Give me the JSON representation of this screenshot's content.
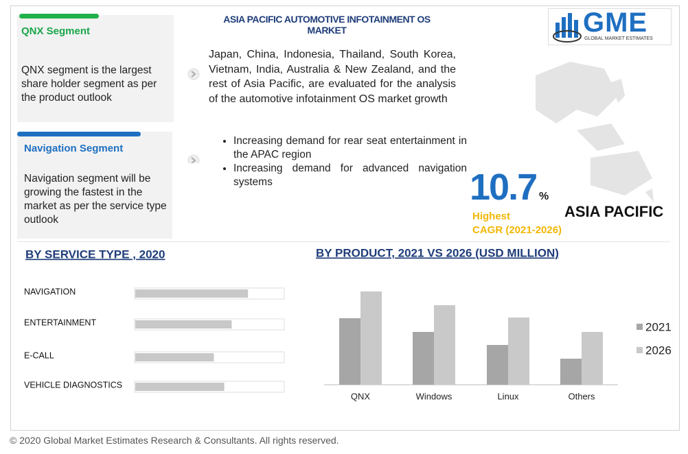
{
  "header": {
    "title": "ASIA PACIFIC  AUTOMOTIVE INFOTAINMENT OS MARKET",
    "logo": "GME",
    "logo_sub": "GLOBAL MARKET ESTIMATES"
  },
  "segments": [
    {
      "title": "QNX Segment",
      "text": "QNX segment is the largest share holder segment as per the product outlook"
    },
    {
      "title": "Navigation Segment",
      "text": "Navigation segment will be growing the fastest in the market as per the service type outlook"
    }
  ],
  "intro": "Japan, China, Indonesia, Thailand, South Korea, Vietnam, India, Australia & New Zealand, and the rest of Asia Pacific, are evaluated for the analysis of the automotive infotainment OS market growth",
  "bullets": [
    "Increasing demand for rear seat entertainment in  the APAC region",
    "Increasing demand for advanced navigation systems"
  ],
  "cagr": {
    "value": 10.7,
    "unit": "%",
    "label": "Highest",
    "period": "CAGR (2021-2026)"
  },
  "region": "ASIA PACIFIC",
  "chart_data": [
    {
      "type": "hbar",
      "title": "BY  SERVICE TYPE , 2020",
      "categories": [
        "NAVIGATION",
        "ENTERTAINMENT",
        "E-CALL",
        "VEHICLE DIAGNOSTICS"
      ],
      "values": [
        76,
        65,
        53,
        60
      ],
      "xlim": [
        0,
        100
      ],
      "color": "#c8c8c8"
    },
    {
      "type": "bar",
      "title": "BY PRODUCT, 2021 VS 2026 (USD MILLION)",
      "categories": [
        "QNX",
        "Windows",
        "Linux",
        "Others"
      ],
      "series": [
        {
          "name": "2021",
          "color": "#a6a6a6",
          "values": [
            97,
            77,
            58,
            38
          ]
        },
        {
          "name": "2026",
          "color": "#c9c9c9",
          "values": [
            136,
            116,
            98,
            77
          ]
        }
      ],
      "ylim": [
        0,
        140
      ]
    }
  ],
  "footer": "© 2020 Global Market Estimates Research & Consultants. All rights reserved."
}
